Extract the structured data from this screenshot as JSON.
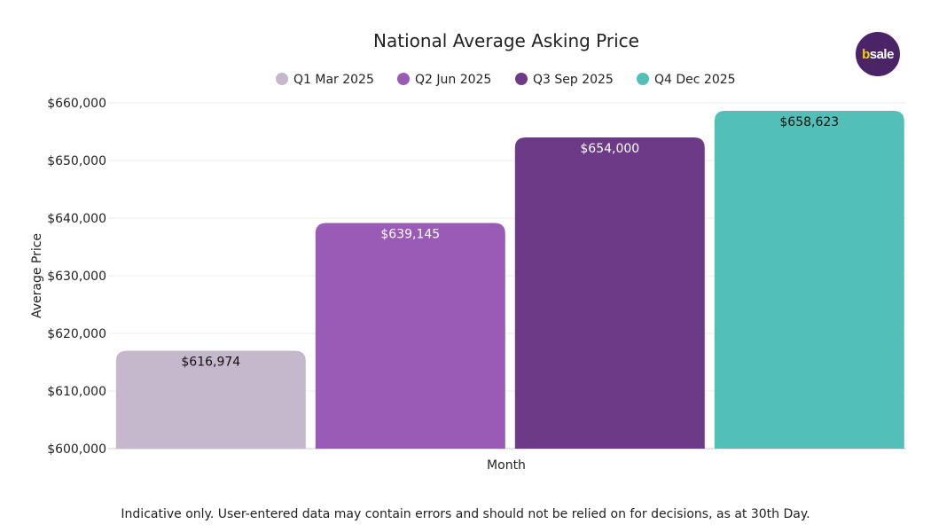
{
  "logo": {
    "text": "bsale",
    "colors": {
      "background": "#4a2466",
      "accent": "#f5d300"
    }
  },
  "footer": "Indicative only. User-entered data may contain errors and should not be relied on for decisions, as at 30th Day.",
  "chart_data": {
    "type": "bar",
    "title": "National Average Asking Price",
    "xlabel": "Month",
    "ylabel": "Average Price",
    "ylim": [
      600000,
      660000
    ],
    "yticks": [
      600000,
      610000,
      620000,
      630000,
      640000,
      650000,
      660000
    ],
    "ytick_labels": [
      "$600,000",
      "$610,000",
      "$620,000",
      "$630,000",
      "$640,000",
      "$650,000",
      "$660,000"
    ],
    "grid": true,
    "legend_position": "top",
    "series": [
      {
        "name": "Q1 Mar 2025",
        "value": 616974,
        "label": "$616,974",
        "color": "#c5b8cc",
        "label_color": "#111111"
      },
      {
        "name": "Q2 Jun 2025",
        "value": 639145,
        "label": "$639,145",
        "color": "#9a5bb6",
        "label_color": "#ffffff"
      },
      {
        "name": "Q3 Sep 2025",
        "value": 654000,
        "label": "$654,000",
        "color": "#6d3a87",
        "label_color": "#ffffff"
      },
      {
        "name": "Q4 Dec 2025",
        "value": 658623,
        "label": "$658,623",
        "color": "#52c0b8",
        "label_color": "#111111"
      }
    ]
  }
}
